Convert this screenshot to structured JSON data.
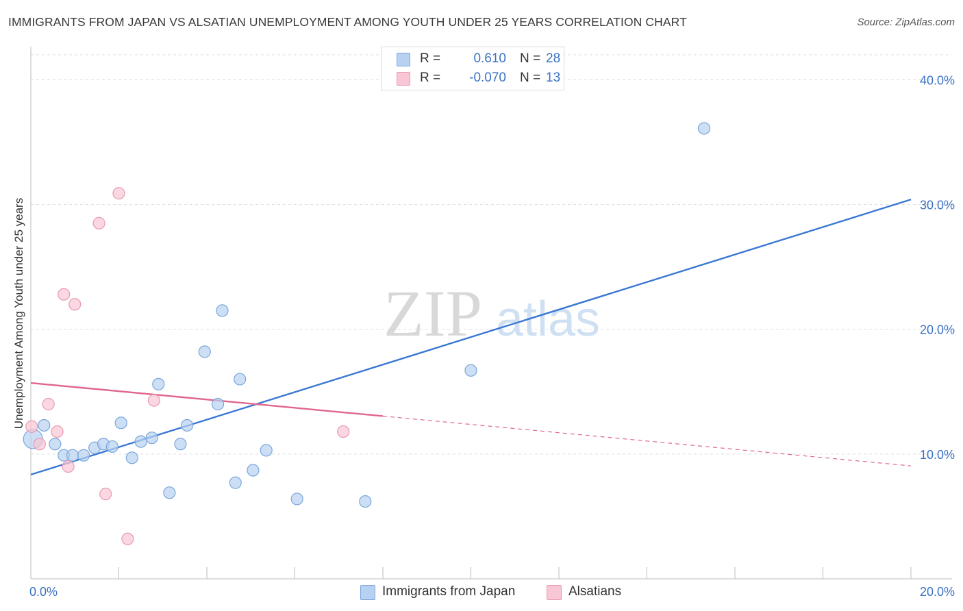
{
  "title": "IMMIGRANTS FROM JAPAN VS ALSATIAN UNEMPLOYMENT AMONG YOUTH UNDER 25 YEARS CORRELATION CHART",
  "source": "Source: ZipAtlas.com",
  "watermark": {
    "zip": "ZIP",
    "atlas": "atlas"
  },
  "legend": {
    "r_label": "R =",
    "n_label": "N =",
    "rows": [
      {
        "r": "0.610",
        "n": "28"
      },
      {
        "r": "-0.070",
        "n": "13"
      }
    ]
  },
  "colors": {
    "japan_fill": "#b8d1f0",
    "japan_stroke": "#7aa6dc",
    "japan_line": "#3a78d4",
    "alsatian_fill": "#f8c6d4",
    "alsatian_stroke": "#e89ab2",
    "alsatian_line": "#e0668e",
    "tick_label": "#3a72c4",
    "grid": "#dddddd"
  },
  "chart_data": {
    "type": "scatter",
    "xlabel": "",
    "ylabel": "Unemployment Among Youth under 25 years",
    "xlim": [
      0,
      20
    ],
    "ylim": [
      0,
      42
    ],
    "x_tick_labels": [
      {
        "value": 0,
        "label": "0.0%"
      },
      {
        "value": 20,
        "label": "20.0%"
      }
    ],
    "y_ticks": [
      {
        "value": 10,
        "label": "10.0%"
      },
      {
        "value": 20,
        "label": "20.0%"
      },
      {
        "value": 30,
        "label": "30.0%"
      },
      {
        "value": 40,
        "label": "40.0%"
      }
    ],
    "grid": true,
    "legend_position": "bottom",
    "series": [
      {
        "name": "Immigrants from Japan",
        "points": [
          {
            "x": 0.05,
            "y": 11.2,
            "big": true
          },
          {
            "x": 0.3,
            "y": 12.3
          },
          {
            "x": 0.55,
            "y": 10.8
          },
          {
            "x": 0.75,
            "y": 9.9
          },
          {
            "x": 0.95,
            "y": 9.9
          },
          {
            "x": 1.2,
            "y": 9.9
          },
          {
            "x": 1.45,
            "y": 10.5
          },
          {
            "x": 1.65,
            "y": 10.8
          },
          {
            "x": 1.85,
            "y": 10.6
          },
          {
            "x": 2.05,
            "y": 12.5
          },
          {
            "x": 2.3,
            "y": 9.7
          },
          {
            "x": 2.5,
            "y": 11.0
          },
          {
            "x": 2.75,
            "y": 11.3
          },
          {
            "x": 2.9,
            "y": 15.6
          },
          {
            "x": 3.15,
            "y": 6.9
          },
          {
            "x": 3.4,
            "y": 10.8
          },
          {
            "x": 3.55,
            "y": 12.3
          },
          {
            "x": 3.95,
            "y": 18.2
          },
          {
            "x": 4.25,
            "y": 14.0
          },
          {
            "x": 4.35,
            "y": 21.5
          },
          {
            "x": 4.65,
            "y": 7.7
          },
          {
            "x": 4.75,
            "y": 16.0
          },
          {
            "x": 5.05,
            "y": 8.7
          },
          {
            "x": 5.35,
            "y": 10.3
          },
          {
            "x": 6.05,
            "y": 6.4
          },
          {
            "x": 7.6,
            "y": 6.2
          },
          {
            "x": 10.0,
            "y": 16.7
          },
          {
            "x": 15.3,
            "y": 36.1
          }
        ],
        "trend": {
          "x": [
            0,
            20
          ],
          "y": [
            8.35,
            30.4
          ]
        }
      },
      {
        "name": "Alsatians",
        "points": [
          {
            "x": 0.02,
            "y": 12.2
          },
          {
            "x": 0.2,
            "y": 10.8
          },
          {
            "x": 0.4,
            "y": 14.0
          },
          {
            "x": 0.6,
            "y": 11.8
          },
          {
            "x": 0.75,
            "y": 22.8
          },
          {
            "x": 0.85,
            "y": 9.0
          },
          {
            "x": 1.0,
            "y": 22.0
          },
          {
            "x": 1.55,
            "y": 28.5
          },
          {
            "x": 1.7,
            "y": 6.8
          },
          {
            "x": 2.0,
            "y": 30.9
          },
          {
            "x": 2.2,
            "y": 3.2
          },
          {
            "x": 2.8,
            "y": 14.3
          },
          {
            "x": 7.1,
            "y": 11.8
          }
        ],
        "trend": {
          "x": [
            0,
            20
          ],
          "y": [
            15.7,
            9.05
          ],
          "solid_until": 8
        }
      }
    ]
  }
}
